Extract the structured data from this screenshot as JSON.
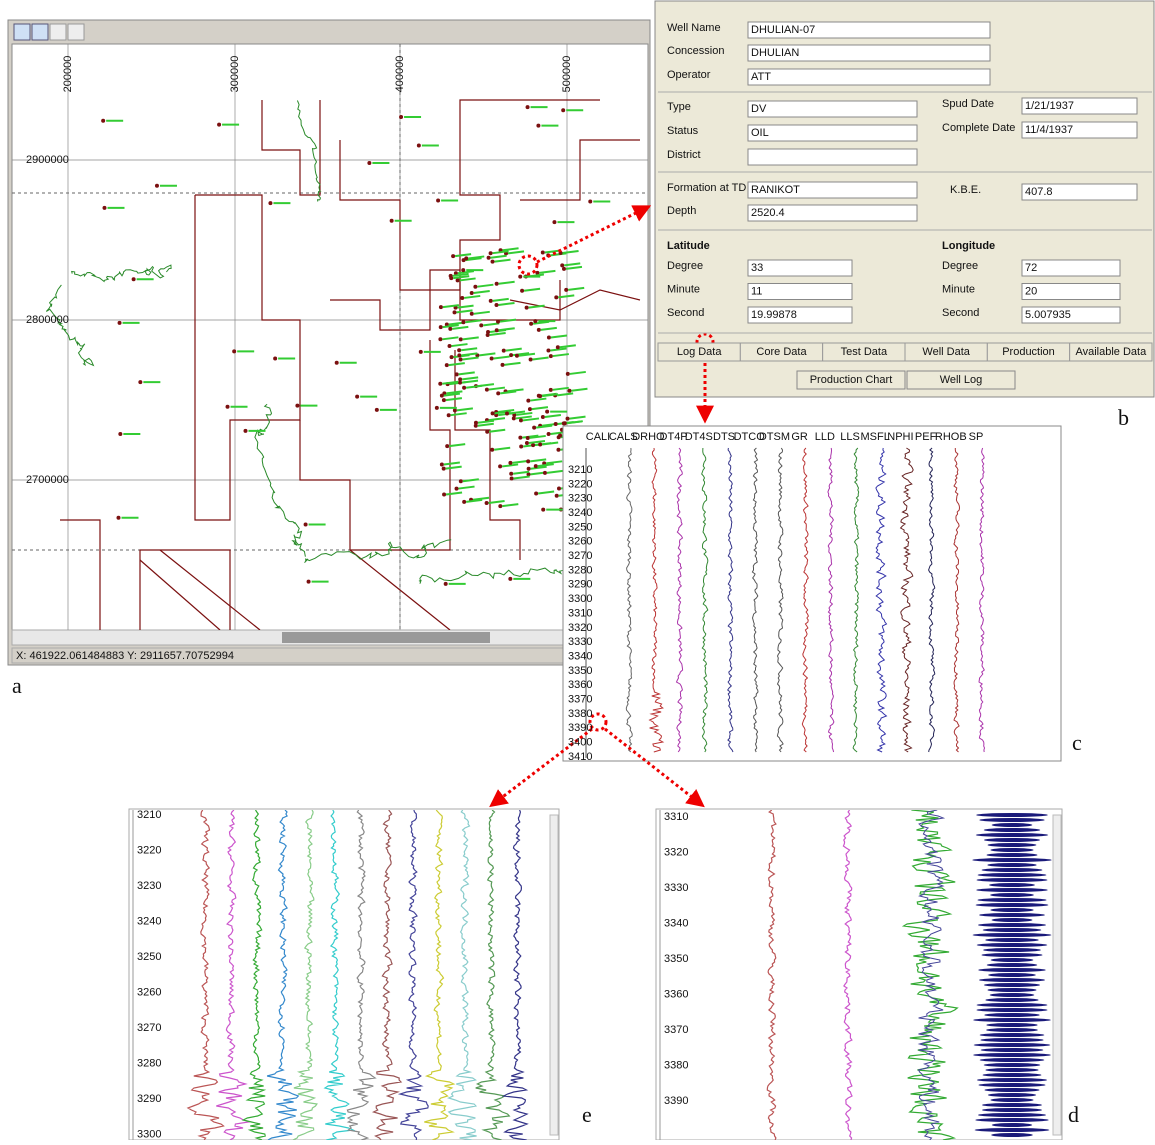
{
  "panel_labels": [
    "a",
    "b",
    "c",
    "d",
    "e"
  ],
  "map": {
    "x_ticks": [
      "200000",
      "300000",
      "400000",
      "500000"
    ],
    "y_ticks": [
      "2900000",
      "2800000",
      "2700000"
    ],
    "status": "X: 461922.061484883 Y: 2911657.70752994"
  },
  "well_form": {
    "fields": [
      {
        "label": "Well Name",
        "value": "DHULIAN-07"
      },
      {
        "label": "Concession",
        "value": "DHULIAN"
      },
      {
        "label": "Operator",
        "value": "ATT"
      },
      {
        "label": "Type",
        "value": "DV"
      },
      {
        "label": "Status",
        "value": "OIL"
      },
      {
        "label": "District"
      },
      {
        "label": "Spud Date",
        "value": "1/21/1937"
      },
      {
        "label": "Complete Date",
        "value": "11/4/1937"
      },
      {
        "label": "Formation at TD",
        "value": "RANIKOT"
      },
      {
        "label": "K.B.E.",
        "value": "407.8"
      },
      {
        "label": "Depth",
        "value": "2520.4"
      }
    ],
    "latitude": {
      "title": "Latitude",
      "rows": [
        {
          "label": "Degree",
          "value": "33"
        },
        {
          "label": "Minute",
          "value": "11"
        },
        {
          "label": "Second",
          "value": "19.99878"
        }
      ]
    },
    "longitude": {
      "title": "Longitude",
      "rows": [
        {
          "label": "Degree",
          "value": "72"
        },
        {
          "label": "Minute",
          "value": "20"
        },
        {
          "label": "Second",
          "value": "5.007935"
        }
      ]
    },
    "tabs": [
      "Log Data",
      "Core Data",
      "Test Data",
      "Well Data",
      "Production",
      "Available Data"
    ],
    "buttons": [
      "Production Chart",
      "Well Log"
    ]
  },
  "log_c": {
    "tracks": [
      "CALI",
      "CALS",
      "DRHO",
      "DT4P",
      "DT4S",
      "DTS",
      "DTCO",
      "DTSM",
      "GR",
      "LLD",
      "LLS",
      "MSFL",
      "NPHI",
      "PEF",
      "RHOB",
      "SP"
    ],
    "depths": [
      3210,
      3220,
      3230,
      3240,
      3250,
      3260,
      3270,
      3280,
      3290,
      3300,
      3310,
      3320,
      3330,
      3340,
      3350,
      3360,
      3370,
      3380,
      3390,
      3400,
      3410
    ]
  },
  "log_e": {
    "depths": [
      3210,
      3220,
      3230,
      3240,
      3250,
      3260,
      3270,
      3280,
      3290,
      3300
    ]
  },
  "log_d": {
    "depths": [
      3310,
      3320,
      3330,
      3340,
      3350,
      3360,
      3370,
      3380,
      3390
    ]
  }
}
